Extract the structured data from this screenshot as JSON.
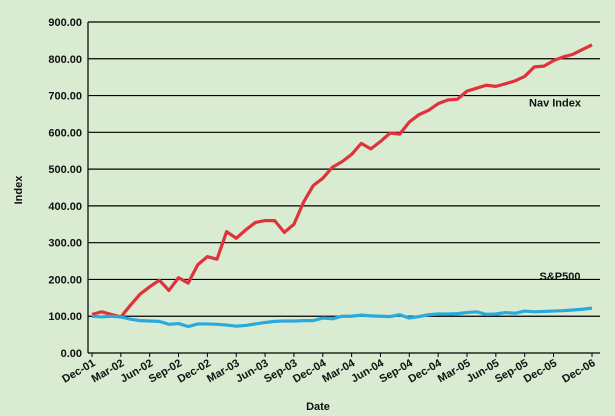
{
  "chart_data": {
    "type": "line",
    "x_label": "Date",
    "y_label": "Index",
    "categories": [
      "Dec-01",
      null,
      null,
      "Mar-02",
      null,
      null,
      "Jun-02",
      null,
      null,
      "Sep-02",
      null,
      null,
      "Dec-02",
      null,
      null,
      "Mar-03",
      null,
      null,
      "Jun-03",
      null,
      null,
      "Sep-03",
      null,
      null,
      "Dec-04",
      null,
      null,
      "Mar-04",
      null,
      null,
      "Jun-04",
      null,
      null,
      "Sep-04",
      null,
      null,
      "Dec-04",
      null,
      null,
      "Mar-05",
      null,
      null,
      "Jun-05",
      null,
      null,
      "Sep-05",
      null,
      null,
      "Dec-05",
      null,
      null,
      null,
      "Dec-06"
    ],
    "series": [
      {
        "name": "Nav Index",
        "color": "#e0323c",
        "values": [
          105,
          112,
          105,
          98,
          130,
          160,
          180,
          198,
          170,
          205,
          190,
          240,
          262,
          255,
          330,
          312,
          335,
          355,
          360,
          360,
          328,
          350,
          410,
          455,
          475,
          505,
          520,
          540,
          570,
          555,
          575,
          598,
          595,
          628,
          648,
          660,
          678,
          688,
          690,
          712,
          720,
          728,
          725,
          732,
          740,
          752,
          778,
          780,
          795,
          805,
          812,
          825,
          838
        ]
      },
      {
        "name": "S&P500",
        "color": "#2aa9df",
        "values": [
          100,
          98,
          100,
          98,
          92,
          88,
          87,
          86,
          78,
          80,
          72,
          79,
          79,
          78,
          76,
          73,
          75,
          79,
          83,
          86,
          87,
          87,
          88,
          88,
          95,
          93,
          100,
          100,
          103,
          101,
          100,
          99,
          104,
          95,
          99,
          104,
          106,
          106,
          107,
          110,
          112,
          105,
          106,
          110,
          108,
          114,
          112,
          113,
          114,
          115,
          117,
          119,
          122
        ]
      }
    ],
    "ylim": [
      0,
      900
    ],
    "yticks": [
      {
        "value": 0,
        "label": "0.00"
      },
      {
        "value": 100,
        "label": "100.00"
      },
      {
        "value": 200,
        "label": "200.00"
      },
      {
        "value": 300,
        "label": "300.00"
      },
      {
        "value": 400,
        "label": "400.00"
      },
      {
        "value": 500,
        "label": "500.00"
      },
      {
        "value": 600,
        "label": "600.00"
      },
      {
        "value": 700,
        "label": "700.00"
      },
      {
        "value": 800,
        "label": "800.00"
      },
      {
        "value": 900,
        "label": "900.00"
      }
    ],
    "grid": true
  }
}
